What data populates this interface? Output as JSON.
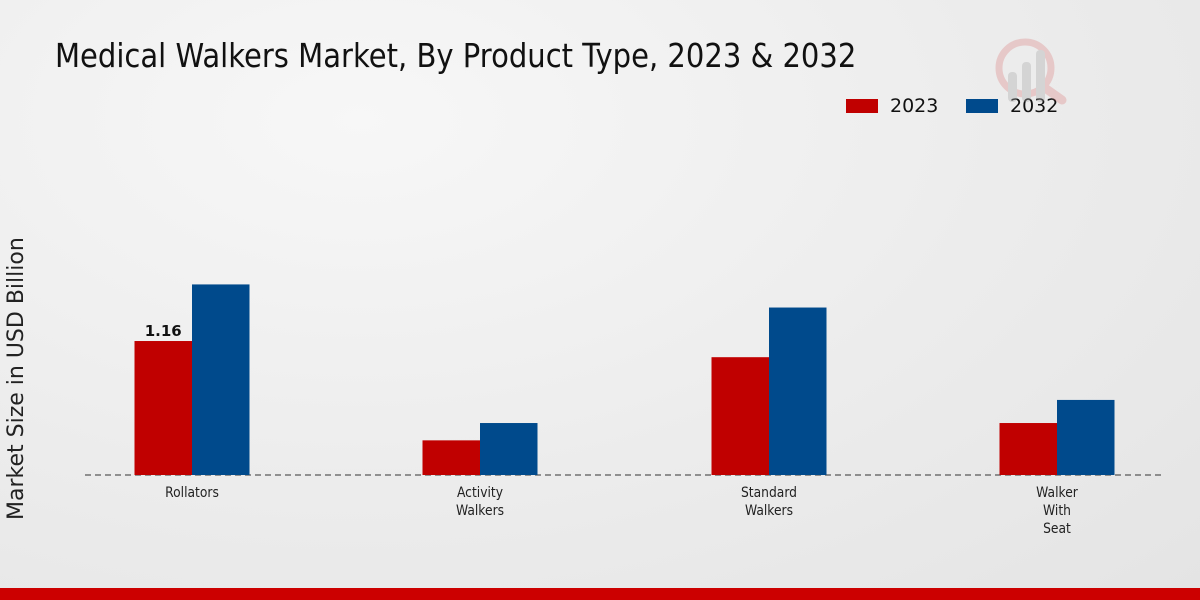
{
  "chart_data": {
    "type": "bar",
    "title": "Medical Walkers Market, By Product Type, 2023 & 2032",
    "xlabel": "",
    "ylabel": "Market Size in USD Billion",
    "categories": [
      [
        "Rollators"
      ],
      [
        "Activity",
        "Walkers"
      ],
      [
        "Standard",
        "Walkers"
      ],
      [
        "Walker",
        "With",
        "Seat"
      ]
    ],
    "series": [
      {
        "name": "2023",
        "color": "#c00000",
        "values": [
          1.16,
          0.3,
          1.02,
          0.45
        ]
      },
      {
        "name": "2032",
        "color": "#004a8c",
        "values": [
          1.65,
          0.45,
          1.45,
          0.65
        ]
      }
    ],
    "data_labels": [
      {
        "series": 0,
        "index": 0,
        "text": "1.16"
      }
    ],
    "ylim": [
      0,
      2.5
    ],
    "grid": false,
    "legend_position": "top-right"
  }
}
